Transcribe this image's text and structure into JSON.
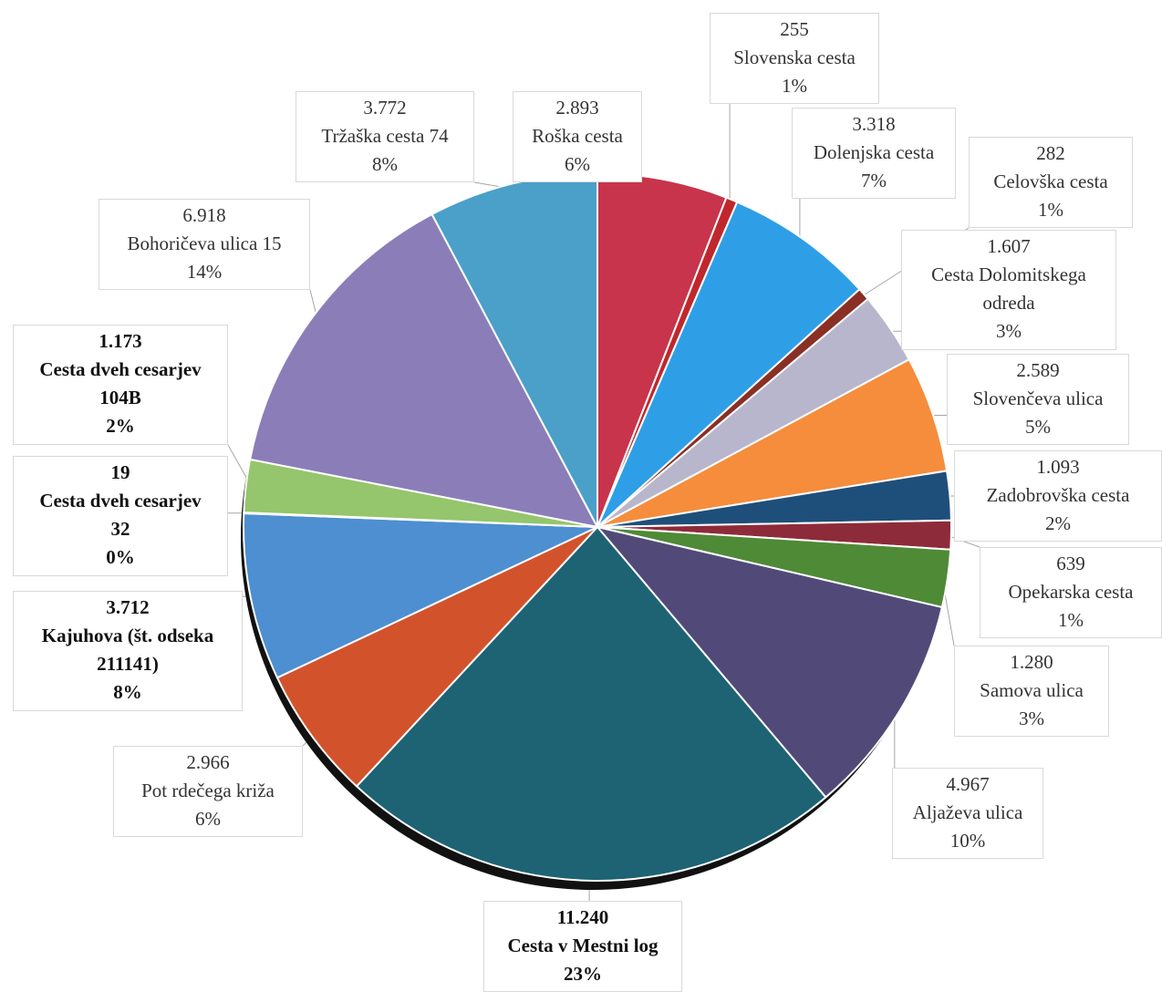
{
  "chart_data": {
    "type": "pie",
    "title": "",
    "slices": [
      {
        "value": "2.893",
        "name": "Roška cesta",
        "percent": "6%",
        "value_num": 2893,
        "color": "#c8344b"
      },
      {
        "value": "255",
        "name": "Slovenska cesta",
        "percent": "1%",
        "value_num": 255,
        "color": "#c0272d"
      },
      {
        "value": "3.318",
        "name": "Dolenjska cesta",
        "percent": "7%",
        "value_num": 3318,
        "color": "#2e9fe6"
      },
      {
        "value": "282",
        "name": "Celovška cesta",
        "percent": "1%",
        "value_num": 282,
        "color": "#8a2f24"
      },
      {
        "value": "1.607",
        "name": "Cesta Dolomitskega odreda",
        "percent": "3%",
        "value_num": 1607,
        "color": "#b8b6cc"
      },
      {
        "value": "2.589",
        "name": "Slovenčeva ulica",
        "percent": "5%",
        "value_num": 2589,
        "color": "#f58d3c"
      },
      {
        "value": "1.093",
        "name": "Zadobrovška cesta",
        "percent": "2%",
        "value_num": 1093,
        "color": "#1e4f7a"
      },
      {
        "value": "639",
        "name": "Opekarska cesta",
        "percent": "1%",
        "value_num": 639,
        "color": "#8e2b3a"
      },
      {
        "value": "1.280",
        "name": "Samova ulica",
        "percent": "3%",
        "value_num": 1280,
        "color": "#4f8a37"
      },
      {
        "value": "4.967",
        "name": "Aljaževa ulica",
        "percent": "10%",
        "value_num": 4967,
        "color": "#514a78"
      },
      {
        "value": "11.240",
        "name": "Cesta v Mestni log",
        "percent": "23%",
        "value_num": 11240,
        "color": "#1d6374"
      },
      {
        "value": "2.966",
        "name": "Pot rdečega križa",
        "percent": "6%",
        "value_num": 2966,
        "color": "#d2532b"
      },
      {
        "value": "3.712",
        "name": "Kajuhova (št. odseka 211141)",
        "percent": "8%",
        "value_num": 3712,
        "color": "#4d8fd0"
      },
      {
        "value": "19",
        "name": "Cesta dveh cesarjev 32",
        "percent": "0%",
        "value_num": 19,
        "color": "#5b7f2f"
      },
      {
        "value": "1.173",
        "name": "Cesta dveh cesarjev 104B",
        "percent": "2%",
        "value_num": 1173,
        "color": "#95c56c"
      },
      {
        "value": "6.918",
        "name": "Bohoričeva ulica 15",
        "percent": "14%",
        "value_num": 6918,
        "color": "#8b7eb8"
      },
      {
        "value": "3.772",
        "name": "Tržaška cesta 74",
        "percent": "8%",
        "value_num": 3772,
        "color": "#4aa0c9"
      }
    ],
    "label_lines": [
      [
        "3.318",
        "Dolenjska cesta",
        "7%"
      ],
      [
        "2.893",
        "Roška cesta",
        "6%"
      ],
      [
        "255",
        "Slovenska cesta",
        "1%"
      ],
      [
        "282",
        "Celovška cesta",
        "1%"
      ],
      [
        "1.607",
        "Cesta Dolomitskega",
        "odreda",
        "3%"
      ],
      [
        "2.589",
        "Slovenčeva ulica",
        "5%"
      ],
      [
        "1.093",
        "Zadobrovška cesta",
        "2%"
      ],
      [
        "639",
        "Opekarska cesta",
        "1%"
      ],
      [
        "1.280",
        "Samova ulica",
        "3%"
      ],
      [
        "4.967",
        "Aljaževa ulica",
        "10%"
      ],
      [
        "11.240",
        "Cesta v Mestni log",
        "23%"
      ],
      [
        "2.966",
        "Pot rdečega križa",
        "6%"
      ],
      [
        "3.712",
        "Kajuhova (št. odseka",
        "211141)",
        "8%"
      ],
      [
        "19",
        "Cesta dveh cesarjev",
        "32",
        "0%"
      ],
      [
        "1.173",
        "Cesta dveh cesarjev",
        "104B",
        "2%"
      ],
      [
        "6.918",
        "Bohoričeva ulica 15",
        "14%"
      ],
      [
        "3.772",
        "Tržaška cesta 74",
        "8%"
      ]
    ]
  }
}
